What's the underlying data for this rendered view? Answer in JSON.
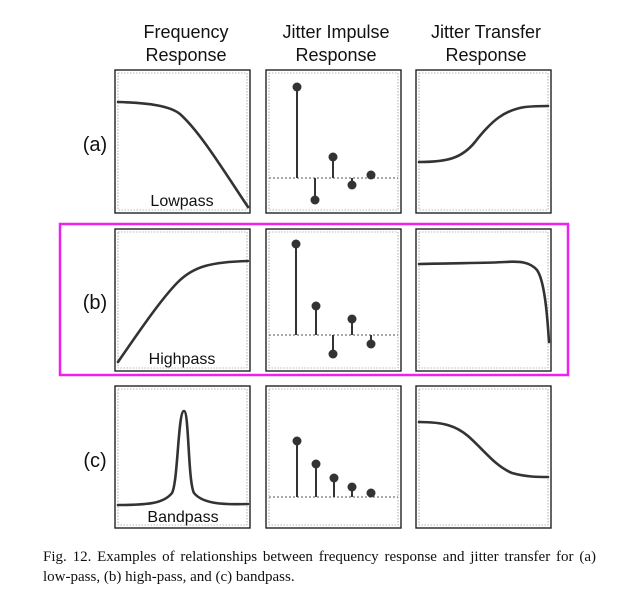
{
  "columns": [
    {
      "line1": "Frequency",
      "line2": "Response"
    },
    {
      "line1": "Jitter Impulse",
      "line2": "Response"
    },
    {
      "line1": "Jitter Transfer",
      "line2": "Response"
    }
  ],
  "rows": [
    {
      "label": "(a)",
      "filter": "Lowpass",
      "highlighted": false
    },
    {
      "label": "(b)",
      "filter": "Highpass",
      "highlighted": true
    },
    {
      "label": "(c)",
      "filter": "Bandpass",
      "highlighted": false
    }
  ],
  "caption": "Fig. 12.  Examples of relationships between frequency response and jitter transfer for (a) low-pass, (b) high-pass, and (c) bandpass.",
  "colors": {
    "highlight": "#ee22ee",
    "curve": "#333333"
  }
}
